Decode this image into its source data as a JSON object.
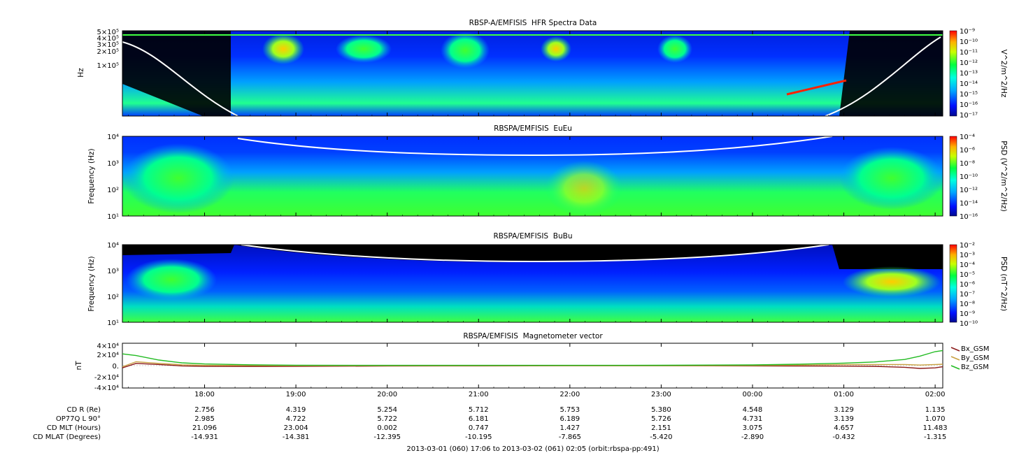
{
  "footer": "2013-03-01 (060) 17:06 to 2013-03-02 (061) 02:05 (orbit:rbspa-pp:491)",
  "time_ticks": [
    "18:00",
    "19:00",
    "20:00",
    "21:00",
    "22:00",
    "23:00",
    "00:00",
    "01:00",
    "02:00"
  ],
  "ephemeris": {
    "labels": [
      "CD R (Re)",
      "OP77Q L 90°",
      "CD MLT (Hours)",
      "CD MLAT (Degrees)"
    ],
    "rows": [
      [
        "2.756",
        "4.319",
        "5.254",
        "5.712",
        "5.753",
        "5.380",
        "4.548",
        "3.129",
        "1.135"
      ],
      [
        "2.985",
        "4.722",
        "5.722",
        "6.181",
        "6.189",
        "5.726",
        "4.731",
        "3.139",
        "1.070"
      ],
      [
        "21.096",
        "23.004",
        "0.002",
        "0.747",
        "1.427",
        "2.151",
        "3.075",
        "4.657",
        "11.483"
      ],
      [
        "-14.931",
        "-14.381",
        "-12.395",
        "-10.195",
        "-7.865",
        "-5.420",
        "-2.890",
        "-0.432",
        "-1.315"
      ]
    ]
  },
  "chart_data": [
    {
      "type": "heatmap",
      "title": "RBSP-A/EMFISIS  HFR Spectra Data",
      "ylabel": "Hz",
      "y_tick_labels": [
        "5×10⁵",
        "4×10⁵",
        "3×10⁵",
        "2×10⁵",
        "1×10⁵"
      ],
      "colorbar_label": "V^2/m^2/Hz",
      "colorbar_ticks": [
        "10⁻⁹",
        "10⁻¹⁰",
        "10⁻¹¹",
        "10⁻¹²",
        "10⁻¹³",
        "10⁻¹⁴",
        "10⁻¹⁵",
        "10⁻¹⁶",
        "10⁻¹⁷"
      ]
    },
    {
      "type": "heatmap",
      "title": "RBSPA/EMFISIS  EuEu",
      "ylabel": "Frequency (Hz)",
      "y_tick_labels": [
        "10⁴",
        "10³",
        "10²",
        "10¹"
      ],
      "colorbar_label": "PSD (V^2/m^2/Hz)",
      "colorbar_ticks": [
        "10⁻⁴",
        "10⁻⁶",
        "10⁻⁸",
        "10⁻¹⁰",
        "10⁻¹²",
        "10⁻¹⁴",
        "10⁻¹⁶"
      ]
    },
    {
      "type": "heatmap",
      "title": "RBSPA/EMFISIS  BuBu",
      "ylabel": "Frequency (Hz)",
      "y_tick_labels": [
        "10⁴",
        "10³",
        "10²",
        "10¹"
      ],
      "colorbar_label": "PSD (nT^2/Hz)",
      "colorbar_ticks": [
        "10⁻²",
        "10⁻³",
        "10⁻⁴",
        "10⁻⁵",
        "10⁻⁶",
        "10⁻⁷",
        "10⁻⁸",
        "10⁻⁹",
        "10⁻¹⁰"
      ]
    },
    {
      "type": "line",
      "title": "RBSPA/EMFISIS  Magnetometer vector",
      "ylabel": "nT",
      "y_tick_labels": [
        "4×10⁴",
        "2×10⁴",
        "0.",
        "-2×10⁴",
        "-4×10⁴"
      ],
      "ylim": [
        -40000,
        40000
      ],
      "x": [
        "17:06",
        "17:15",
        "17:30",
        "17:45",
        "18:00",
        "18:30",
        "19:00",
        "20:00",
        "21:00",
        "22:00",
        "23:00",
        "00:00",
        "00:30",
        "01:00",
        "01:20",
        "01:40",
        "01:50",
        "02:00",
        "02:05"
      ],
      "series": [
        {
          "name": "Bx_GSM",
          "color": "#8b1a1a",
          "values": [
            -4000,
            4000,
            2000,
            -500,
            -1200,
            -1500,
            -1200,
            -800,
            -500,
            -300,
            -300,
            -500,
            -700,
            -900,
            -1200,
            -3000,
            -5000,
            -4000,
            -2000
          ]
        },
        {
          "name": "By_GSM",
          "color": "#c8a040",
          "values": [
            -2000,
            7000,
            4000,
            1500,
            500,
            200,
            0,
            0,
            0,
            0,
            0,
            300,
            1000,
            2000,
            2000,
            2000,
            1000,
            2000,
            2500
          ]
        },
        {
          "name": "Bz_GSM",
          "color": "#22bb22",
          "values": [
            21000,
            18000,
            10000,
            5000,
            3000,
            1500,
            800,
            500,
            500,
            500,
            600,
            1200,
            2500,
            4500,
            6500,
            11000,
            17000,
            25000,
            27000
          ]
        }
      ]
    }
  ]
}
